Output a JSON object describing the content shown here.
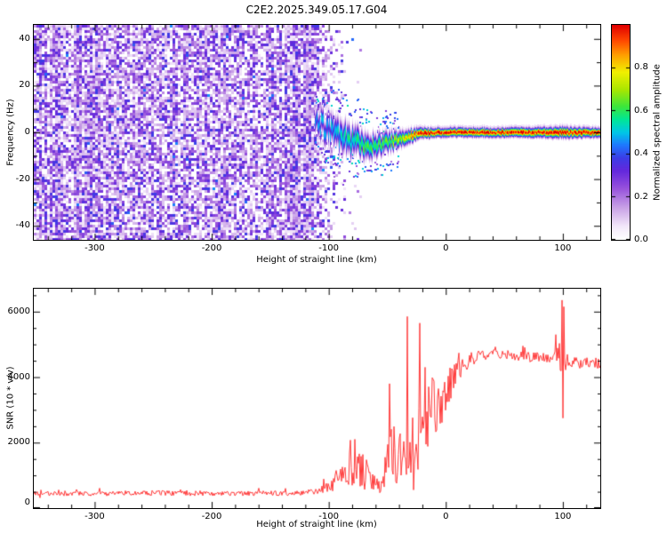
{
  "figure": {
    "title": "C2E2.2025.349.05.17.G04"
  },
  "chart_data": [
    {
      "type": "heatmap",
      "name": "doppler-spectrogram",
      "xlabel": "Height of straight line (km)",
      "ylabel": "Frequency (Hz)",
      "xlim": [
        -352,
        132
      ],
      "ylim": [
        -46,
        46
      ],
      "xticks": [
        -300,
        -200,
        -100,
        0,
        100
      ],
      "xticklabels": [
        "-300",
        "-200",
        "-100",
        "0",
        "100"
      ],
      "yticks": [
        -40,
        -20,
        0,
        20,
        40
      ],
      "yticklabels": [
        "-40",
        "-20",
        "0",
        "20",
        "40"
      ],
      "x_minor_step": 20,
      "y_minor_step": 10,
      "colorbar": {
        "label": "Normalized spectral amplitude",
        "ticks": [
          0.0,
          0.2,
          0.4,
          0.6,
          0.8
        ],
        "ticklabels": [
          "0.0",
          "0.2",
          "0.4",
          "0.6",
          "0.8"
        ],
        "range": [
          0,
          1
        ],
        "stops": [
          [
            0.0,
            "#ffffff"
          ],
          [
            0.06,
            "#f3e8fa"
          ],
          [
            0.15,
            "#c8a0e6"
          ],
          [
            0.24,
            "#9650dc"
          ],
          [
            0.32,
            "#6428dc"
          ],
          [
            0.38,
            "#3c3ce6"
          ],
          [
            0.44,
            "#1e78ff"
          ],
          [
            0.5,
            "#00c8e6"
          ],
          [
            0.56,
            "#00e696"
          ],
          [
            0.62,
            "#3ce63c"
          ],
          [
            0.7,
            "#aae600"
          ],
          [
            0.78,
            "#f0f000"
          ],
          [
            0.86,
            "#ffa000"
          ],
          [
            0.93,
            "#ff4600"
          ],
          [
            1.0,
            "#e10000"
          ]
        ]
      },
      "noise_region": {
        "x_full_until": -115,
        "x_fade_to": -84,
        "x_sparse_to": -72,
        "density": 0.8,
        "amp_low": 0.06,
        "amp_span": 0.32
      },
      "signal_track": {
        "x": [
          -112,
          -104,
          -96,
          -88,
          -80,
          -72,
          -64,
          -56,
          -48,
          -40,
          -32,
          -26,
          -20,
          -10,
          0,
          40,
          80,
          100,
          132
        ],
        "center": [
          4,
          2,
          0,
          -2,
          -3.5,
          -4.5,
          -5,
          -4.5,
          -3.5,
          -2.5,
          -1,
          -0.3,
          0.2,
          0.4,
          0.5,
          0.5,
          0.5,
          0.5,
          0.5
        ],
        "width": [
          4.5,
          5.5,
          6,
          6.5,
          6,
          5.5,
          5,
          4.5,
          4,
          3.5,
          3,
          2.6,
          2.2,
          2,
          2,
          2,
          2.2,
          2.4,
          2
        ],
        "amp": [
          0.45,
          0.5,
          0.52,
          0.55,
          0.58,
          0.6,
          0.62,
          0.65,
          0.68,
          0.72,
          0.85,
          0.92,
          1,
          1,
          1,
          1,
          1,
          1,
          1
        ],
        "jitter": [
          5,
          4.5,
          4,
          3.5,
          3,
          2.6,
          2.2,
          1.8,
          1.5,
          1.2,
          0.9,
          0.7,
          0.5,
          0.4,
          0.35,
          0.35,
          0.4,
          0.5,
          0.35
        ]
      }
    },
    {
      "type": "line",
      "name": "snr-profile",
      "xlabel": "Height of straight line (km)",
      "ylabel": "SNR (10 * v/v)",
      "xlim": [
        -352,
        132
      ],
      "ylim": [
        0,
        6700
      ],
      "xticks": [
        -300,
        -200,
        -100,
        0,
        100
      ],
      "xticklabels": [
        "-300",
        "-200",
        "-100",
        "0",
        "100"
      ],
      "yticks": [
        0,
        2000,
        4000,
        6000
      ],
      "yticklabels": [
        "0",
        "2000",
        "4000",
        "6000"
      ],
      "x_minor_step": 20,
      "y_minor_step": 500,
      "series": [
        {
          "name": "SNR",
          "color": "#ff3b3b",
          "envelope": [
            [
              -362,
              450,
              140
            ],
            [
              -300,
              440,
              140
            ],
            [
              -250,
              460,
              160
            ],
            [
              -200,
              440,
              140
            ],
            [
              -160,
              450,
              150
            ],
            [
              -130,
              460,
              150
            ],
            [
              -110,
              500,
              180
            ],
            [
              -100,
              650,
              350
            ],
            [
              -92,
              900,
              700
            ],
            [
              -85,
              1200,
              1100
            ],
            [
              -78,
              1300,
              1200
            ],
            [
              -70,
              1100,
              1100
            ],
            [
              -62,
              800,
              700
            ],
            [
              -56,
              600,
              400
            ],
            [
              -50,
              1400,
              1600
            ],
            [
              -45,
              1800,
              1800
            ],
            [
              -40,
              1500,
              1700
            ],
            [
              -35,
              1800,
              2200
            ],
            [
              -30,
              2000,
              2200
            ],
            [
              -25,
              2200,
              2400
            ],
            [
              -20,
              2400,
              2300
            ],
            [
              -15,
              2600,
              2200
            ],
            [
              -10,
              2900,
              2000
            ],
            [
              -5,
              3200,
              1800
            ],
            [
              0,
              3500,
              1500
            ],
            [
              5,
              3800,
              1200
            ],
            [
              10,
              4100,
              900
            ],
            [
              15,
              4300,
              700
            ],
            [
              20,
              4500,
              500
            ],
            [
              25,
              4600,
              400
            ],
            [
              30,
              4650,
              350
            ],
            [
              40,
              4700,
              300
            ],
            [
              50,
              4700,
              300
            ],
            [
              60,
              4650,
              320
            ],
            [
              70,
              4600,
              330
            ],
            [
              80,
              4620,
              350
            ],
            [
              90,
              4580,
              380
            ],
            [
              95,
              4650,
              600
            ],
            [
              98,
              4700,
              1500
            ],
            [
              100,
              4600,
              1800
            ],
            [
              102,
              4500,
              1400
            ],
            [
              105,
              4450,
              600
            ],
            [
              110,
              4420,
              380
            ],
            [
              120,
              4430,
              330
            ],
            [
              130,
              4400,
              330
            ],
            [
              137,
              4400,
              330
            ]
          ],
          "spikes": [
            [
              -48,
              3800
            ],
            [
              -33,
              5850
            ],
            [
              -22,
              5650
            ],
            [
              -18,
              4300
            ],
            [
              99,
              6350
            ],
            [
              100,
              2750
            ],
            [
              101,
              6150
            ]
          ]
        }
      ]
    }
  ]
}
